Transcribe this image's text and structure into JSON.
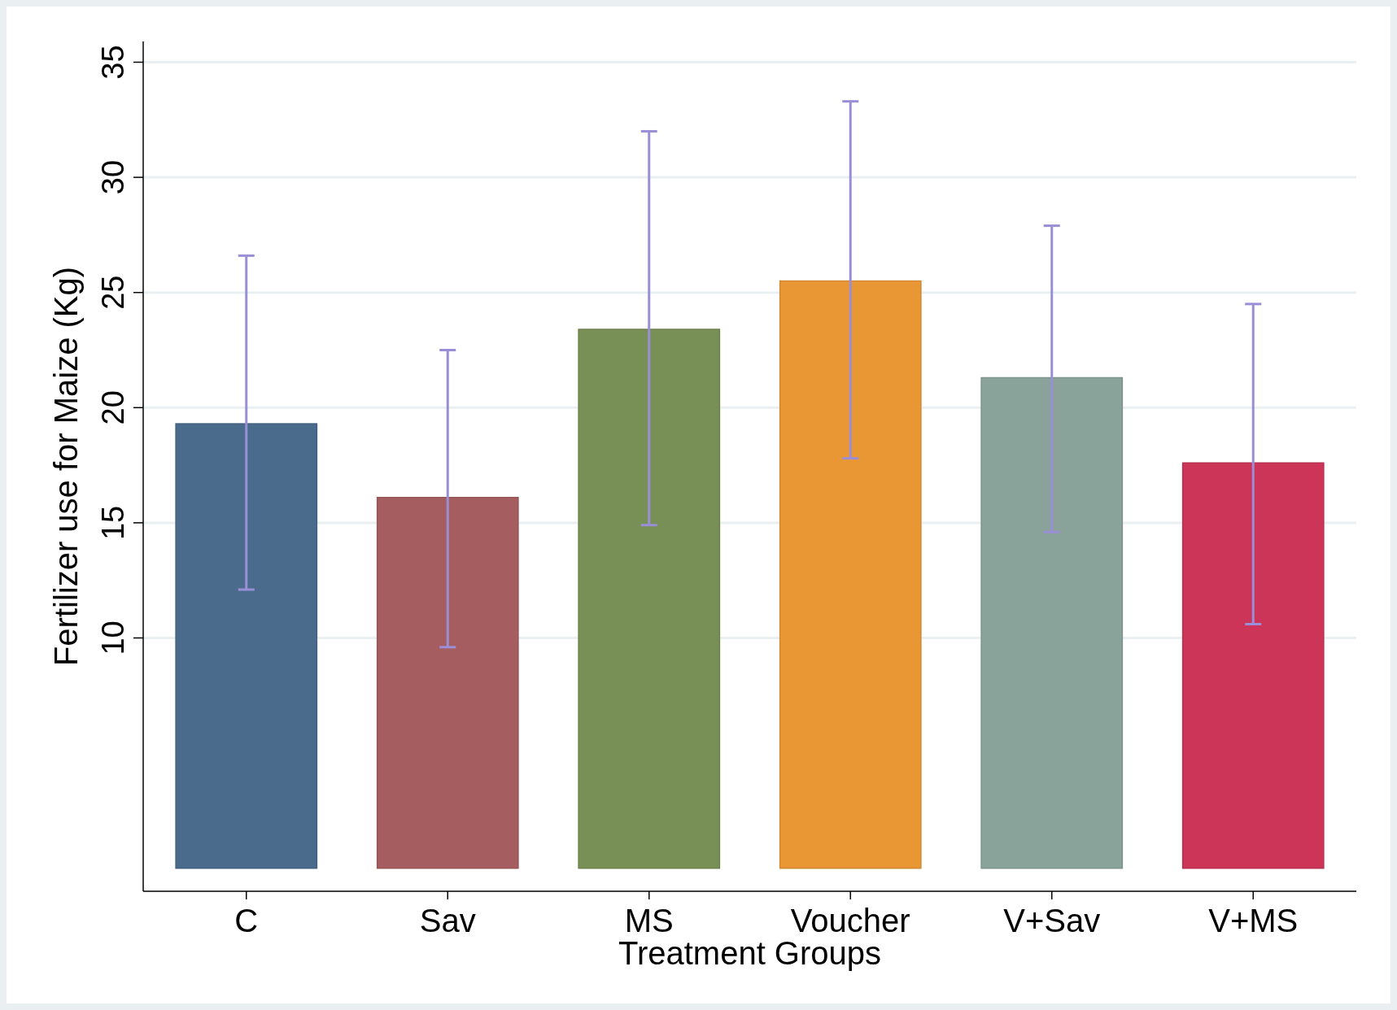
{
  "chart_data": {
    "type": "bar",
    "xlabel": "Treatment Groups",
    "ylabel": "Fertilizer use for Maize (Kg)",
    "categories": [
      "C",
      "Sav",
      "MS",
      "Voucher",
      "V+Sav",
      "V+MS"
    ],
    "values": [
      19.3,
      16.1,
      23.4,
      25.5,
      21.3,
      17.6
    ],
    "colors": [
      "#4a6b8c",
      "#a65d5f",
      "#788f56",
      "#e99735",
      "#8aa39a",
      "#cc3558"
    ],
    "errors": [
      [
        12.1,
        26.6
      ],
      [
        9.6,
        22.5
      ],
      [
        14.9,
        32.0
      ],
      [
        17.8,
        33.3
      ],
      [
        14.6,
        27.9
      ],
      [
        10.6,
        24.5
      ]
    ],
    "ylim": [
      -1,
      35.9
    ],
    "yticks": [
      10,
      15,
      20,
      25,
      30,
      35
    ],
    "grid": "y"
  }
}
